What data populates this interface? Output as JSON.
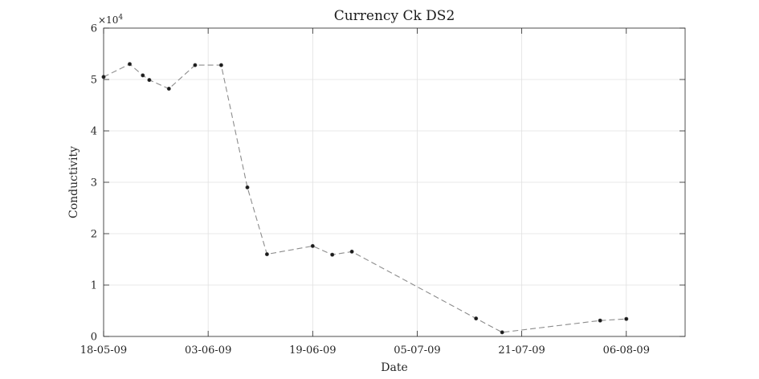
{
  "chart_data": {
    "type": "line",
    "title": "Currency Ck DS2",
    "xlabel": "Date",
    "ylabel": "Conductivity",
    "y_exponent_label": "×10",
    "y_exponent_power": "4",
    "x_tick_labels": [
      "18-05-09",
      "03-06-09",
      "19-06-09",
      "05-07-09",
      "21-07-09",
      "06-08-09"
    ],
    "x_ticks": [
      "2009-05-18",
      "2009-06-03",
      "2009-06-19",
      "2009-07-05",
      "2009-07-21",
      "2009-08-06"
    ],
    "xlim": [
      "2009-05-18",
      "2009-08-15"
    ],
    "y_tick_labels": [
      "0",
      "1",
      "2",
      "3",
      "4",
      "5",
      "6"
    ],
    "y_ticks": [
      0,
      10000,
      20000,
      30000,
      40000,
      50000,
      60000
    ],
    "ylim": [
      0,
      60000
    ],
    "grid": true,
    "line_style": "dashed",
    "colors": {
      "line": "#8c8c8c",
      "marker": "#1a1a1a",
      "grid": "#e0e0e0",
      "axis": "#262626"
    },
    "series": [
      {
        "x": [
          "2009-05-18",
          "2009-05-22",
          "2009-05-24",
          "2009-05-25",
          "2009-05-28",
          "2009-06-01",
          "2009-06-05",
          "2009-06-09",
          "2009-06-12",
          "2009-06-19",
          "2009-06-22",
          "2009-06-25",
          "2009-07-14",
          "2009-07-18",
          "2009-08-02",
          "2009-08-06"
        ],
        "values": [
          50500,
          53000,
          50800,
          49900,
          48200,
          52800,
          52800,
          29000,
          16000,
          17600,
          15900,
          16500,
          3500,
          800,
          3100,
          3400
        ]
      }
    ]
  }
}
